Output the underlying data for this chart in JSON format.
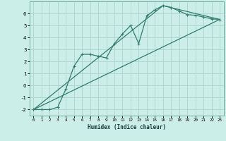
{
  "xlabel": "Humidex (Indice chaleur)",
  "background_color": "#cceee8",
  "grid_color": "#b0d8d0",
  "line_color": "#2e7d6e",
  "xlim": [
    -0.5,
    23.5
  ],
  "ylim": [
    -2.5,
    7.0
  ],
  "yticks": [
    -2,
    -1,
    0,
    1,
    2,
    3,
    4,
    5,
    6
  ],
  "xticks": [
    0,
    1,
    2,
    3,
    4,
    5,
    6,
    7,
    8,
    9,
    10,
    11,
    12,
    13,
    14,
    15,
    16,
    17,
    18,
    19,
    20,
    21,
    22,
    23
  ],
  "line1_x": [
    0,
    1,
    2,
    3,
    4,
    5,
    6,
    7,
    8,
    9,
    10,
    11,
    12,
    13,
    14,
    15,
    16,
    17,
    18,
    19,
    20,
    21,
    22,
    23
  ],
  "line1_y": [
    -2.0,
    -2.0,
    -2.0,
    -1.8,
    -0.3,
    1.6,
    2.6,
    2.6,
    2.45,
    2.3,
    3.5,
    4.3,
    5.0,
    3.5,
    5.8,
    6.3,
    6.65,
    6.5,
    6.2,
    5.9,
    5.85,
    5.7,
    5.55,
    5.5
  ],
  "line2_x": [
    0,
    23
  ],
  "line2_y": [
    -2.0,
    5.5
  ],
  "line3_x": [
    0,
    16,
    23
  ],
  "line3_y": [
    -2.0,
    6.65,
    5.5
  ]
}
